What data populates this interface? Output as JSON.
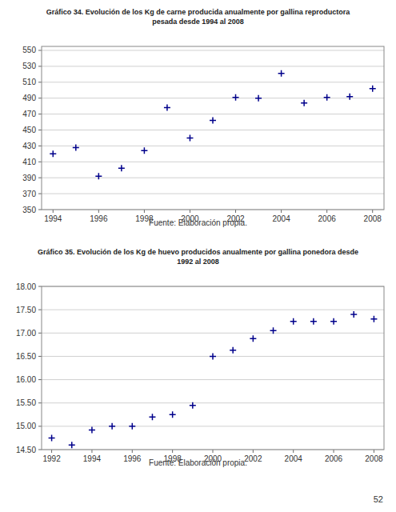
{
  "chart_data": [
    {
      "type": "scatter",
      "title": "Gráfico 34. Evolución de los Kg de carne producida anualmente por gallina reproductora\npesada desde 1994 al 2008",
      "source": "Fuente: Elaboración propia.",
      "x": [
        1994,
        1995,
        1996,
        1997,
        1998,
        1999,
        2000,
        2001,
        2002,
        2003,
        2004,
        2005,
        2006,
        2007,
        2008
      ],
      "values": [
        420,
        428,
        392,
        402,
        424,
        478,
        440,
        462,
        491,
        490,
        521,
        484,
        491,
        492,
        502
      ],
      "xlim": [
        1993.5,
        2008.5
      ],
      "ylim": [
        350,
        555
      ],
      "xticks": [
        1994,
        1996,
        1998,
        2000,
        2002,
        2004,
        2006,
        2008
      ],
      "yticks": [
        350,
        370,
        390,
        410,
        430,
        450,
        470,
        490,
        510,
        530,
        550
      ],
      "color": "#00008B",
      "marker": "plus",
      "grid": true
    },
    {
      "type": "scatter",
      "title": "Gráfico 35. Evolución de los Kg de huevo producidos anualmente por gallina ponedora desde\n1992 al 2008",
      "source": "Fuente: Elaboración propia.",
      "x": [
        1992,
        1993,
        1994,
        1995,
        1996,
        1997,
        1998,
        1999,
        2000,
        2001,
        2002,
        2003,
        2004,
        2005,
        2006,
        2007,
        2008
      ],
      "values": [
        14.75,
        14.6,
        14.92,
        15.0,
        15.0,
        15.2,
        15.25,
        15.45,
        16.5,
        16.63,
        16.88,
        17.05,
        17.25,
        17.25,
        17.25,
        17.4,
        17.3
      ],
      "xlim": [
        1991.5,
        2008.5
      ],
      "ylim": [
        14.5,
        18.0
      ],
      "xticks": [
        1992,
        1994,
        1996,
        1998,
        2000,
        2002,
        2004,
        2006,
        2008
      ],
      "yticks": [
        {
          "value": 14.5,
          "label": "14.50"
        },
        {
          "value": 15.0,
          "label": "15.00"
        },
        {
          "value": 15.5,
          "label": "15.50"
        },
        {
          "value": 16.0,
          "label": "16.00"
        },
        {
          "value": 16.5,
          "label": "16.50"
        },
        {
          "value": 17.0,
          "label": "17.00"
        },
        {
          "value": 17.5,
          "label": "17.50"
        },
        {
          "value": 18.0,
          "label": "18.00"
        }
      ],
      "color": "#00008B",
      "marker": "plus",
      "grid": true
    }
  ],
  "page_number": "52"
}
